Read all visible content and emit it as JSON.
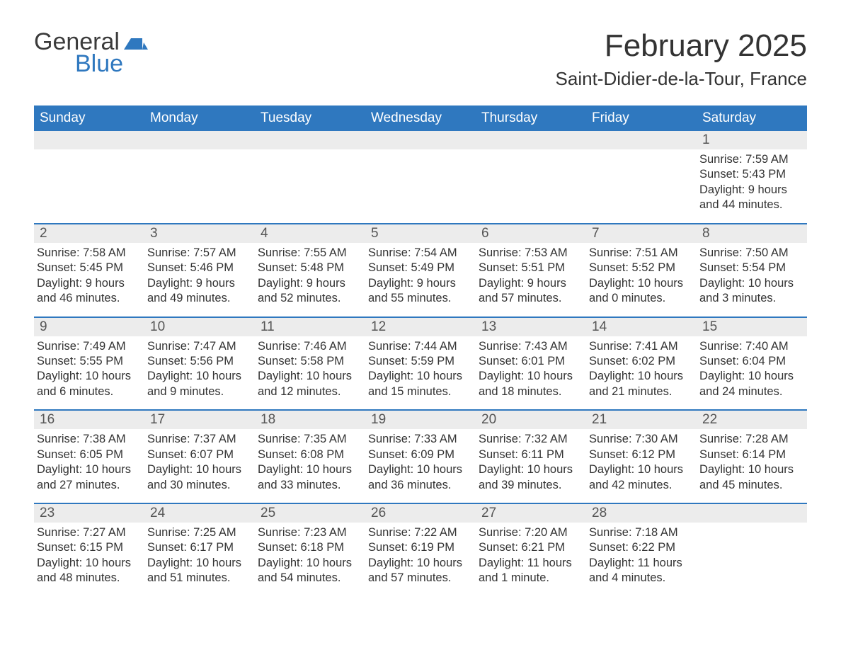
{
  "logo": {
    "text1": "General",
    "text2": "Blue"
  },
  "title": "February 2025",
  "location": "Saint-Didier-de-la-Tour, France",
  "weekday_headers": [
    "Sunday",
    "Monday",
    "Tuesday",
    "Wednesday",
    "Thursday",
    "Friday",
    "Saturday"
  ],
  "style": {
    "header_bg": "#2f78bf",
    "header_fg": "#ffffff",
    "daynum_bg": "#ececec",
    "daynum_border": "#2f78bf",
    "text_color": "#333333",
    "logo_blue": "#2f78bf"
  },
  "weeks": [
    {
      "days": [
        {
          "num": "",
          "sunrise": "",
          "sunset": "",
          "daylight": ""
        },
        {
          "num": "",
          "sunrise": "",
          "sunset": "",
          "daylight": ""
        },
        {
          "num": "",
          "sunrise": "",
          "sunset": "",
          "daylight": ""
        },
        {
          "num": "",
          "sunrise": "",
          "sunset": "",
          "daylight": ""
        },
        {
          "num": "",
          "sunrise": "",
          "sunset": "",
          "daylight": ""
        },
        {
          "num": "",
          "sunrise": "",
          "sunset": "",
          "daylight": ""
        },
        {
          "num": "1",
          "sunrise": "Sunrise: 7:59 AM",
          "sunset": "Sunset: 5:43 PM",
          "daylight": "Daylight: 9 hours and 44 minutes."
        }
      ]
    },
    {
      "days": [
        {
          "num": "2",
          "sunrise": "Sunrise: 7:58 AM",
          "sunset": "Sunset: 5:45 PM",
          "daylight": "Daylight: 9 hours and 46 minutes."
        },
        {
          "num": "3",
          "sunrise": "Sunrise: 7:57 AM",
          "sunset": "Sunset: 5:46 PM",
          "daylight": "Daylight: 9 hours and 49 minutes."
        },
        {
          "num": "4",
          "sunrise": "Sunrise: 7:55 AM",
          "sunset": "Sunset: 5:48 PM",
          "daylight": "Daylight: 9 hours and 52 minutes."
        },
        {
          "num": "5",
          "sunrise": "Sunrise: 7:54 AM",
          "sunset": "Sunset: 5:49 PM",
          "daylight": "Daylight: 9 hours and 55 minutes."
        },
        {
          "num": "6",
          "sunrise": "Sunrise: 7:53 AM",
          "sunset": "Sunset: 5:51 PM",
          "daylight": "Daylight: 9 hours and 57 minutes."
        },
        {
          "num": "7",
          "sunrise": "Sunrise: 7:51 AM",
          "sunset": "Sunset: 5:52 PM",
          "daylight": "Daylight: 10 hours and 0 minutes."
        },
        {
          "num": "8",
          "sunrise": "Sunrise: 7:50 AM",
          "sunset": "Sunset: 5:54 PM",
          "daylight": "Daylight: 10 hours and 3 minutes."
        }
      ]
    },
    {
      "days": [
        {
          "num": "9",
          "sunrise": "Sunrise: 7:49 AM",
          "sunset": "Sunset: 5:55 PM",
          "daylight": "Daylight: 10 hours and 6 minutes."
        },
        {
          "num": "10",
          "sunrise": "Sunrise: 7:47 AM",
          "sunset": "Sunset: 5:56 PM",
          "daylight": "Daylight: 10 hours and 9 minutes."
        },
        {
          "num": "11",
          "sunrise": "Sunrise: 7:46 AM",
          "sunset": "Sunset: 5:58 PM",
          "daylight": "Daylight: 10 hours and 12 minutes."
        },
        {
          "num": "12",
          "sunrise": "Sunrise: 7:44 AM",
          "sunset": "Sunset: 5:59 PM",
          "daylight": "Daylight: 10 hours and 15 minutes."
        },
        {
          "num": "13",
          "sunrise": "Sunrise: 7:43 AM",
          "sunset": "Sunset: 6:01 PM",
          "daylight": "Daylight: 10 hours and 18 minutes."
        },
        {
          "num": "14",
          "sunrise": "Sunrise: 7:41 AM",
          "sunset": "Sunset: 6:02 PM",
          "daylight": "Daylight: 10 hours and 21 minutes."
        },
        {
          "num": "15",
          "sunrise": "Sunrise: 7:40 AM",
          "sunset": "Sunset: 6:04 PM",
          "daylight": "Daylight: 10 hours and 24 minutes."
        }
      ]
    },
    {
      "days": [
        {
          "num": "16",
          "sunrise": "Sunrise: 7:38 AM",
          "sunset": "Sunset: 6:05 PM",
          "daylight": "Daylight: 10 hours and 27 minutes."
        },
        {
          "num": "17",
          "sunrise": "Sunrise: 7:37 AM",
          "sunset": "Sunset: 6:07 PM",
          "daylight": "Daylight: 10 hours and 30 minutes."
        },
        {
          "num": "18",
          "sunrise": "Sunrise: 7:35 AM",
          "sunset": "Sunset: 6:08 PM",
          "daylight": "Daylight: 10 hours and 33 minutes."
        },
        {
          "num": "19",
          "sunrise": "Sunrise: 7:33 AM",
          "sunset": "Sunset: 6:09 PM",
          "daylight": "Daylight: 10 hours and 36 minutes."
        },
        {
          "num": "20",
          "sunrise": "Sunrise: 7:32 AM",
          "sunset": "Sunset: 6:11 PM",
          "daylight": "Daylight: 10 hours and 39 minutes."
        },
        {
          "num": "21",
          "sunrise": "Sunrise: 7:30 AM",
          "sunset": "Sunset: 6:12 PM",
          "daylight": "Daylight: 10 hours and 42 minutes."
        },
        {
          "num": "22",
          "sunrise": "Sunrise: 7:28 AM",
          "sunset": "Sunset: 6:14 PM",
          "daylight": "Daylight: 10 hours and 45 minutes."
        }
      ]
    },
    {
      "days": [
        {
          "num": "23",
          "sunrise": "Sunrise: 7:27 AM",
          "sunset": "Sunset: 6:15 PM",
          "daylight": "Daylight: 10 hours and 48 minutes."
        },
        {
          "num": "24",
          "sunrise": "Sunrise: 7:25 AM",
          "sunset": "Sunset: 6:17 PM",
          "daylight": "Daylight: 10 hours and 51 minutes."
        },
        {
          "num": "25",
          "sunrise": "Sunrise: 7:23 AM",
          "sunset": "Sunset: 6:18 PM",
          "daylight": "Daylight: 10 hours and 54 minutes."
        },
        {
          "num": "26",
          "sunrise": "Sunrise: 7:22 AM",
          "sunset": "Sunset: 6:19 PM",
          "daylight": "Daylight: 10 hours and 57 minutes."
        },
        {
          "num": "27",
          "sunrise": "Sunrise: 7:20 AM",
          "sunset": "Sunset: 6:21 PM",
          "daylight": "Daylight: 11 hours and 1 minute."
        },
        {
          "num": "28",
          "sunrise": "Sunrise: 7:18 AM",
          "sunset": "Sunset: 6:22 PM",
          "daylight": "Daylight: 11 hours and 4 minutes."
        },
        {
          "num": "",
          "sunrise": "",
          "sunset": "",
          "daylight": ""
        }
      ]
    }
  ]
}
